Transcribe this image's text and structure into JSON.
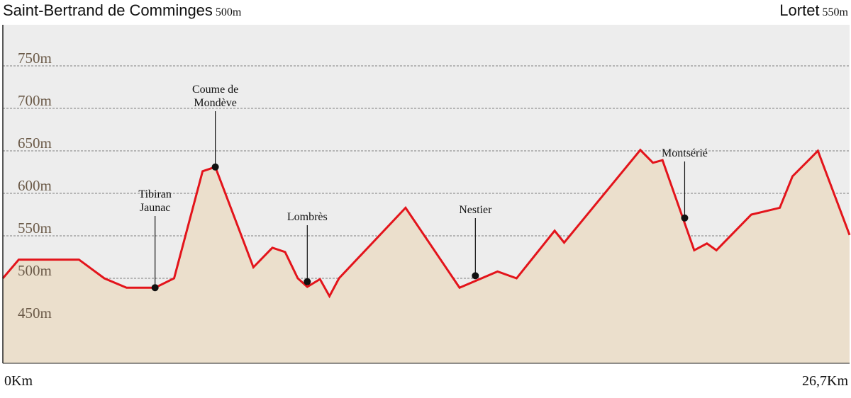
{
  "header": {
    "start_name": "Saint-Bertrand de Comminges",
    "start_alt": "500m",
    "end_name": "Lortet",
    "end_alt": "550m"
  },
  "colors": {
    "plot_bg": "#ededed",
    "area_fill": "#ebdfcc",
    "line": "#e3141b",
    "grid": "#a3a3a3",
    "marker": "#111111",
    "axis_text": "#6b5a48"
  },
  "chart_data": {
    "type": "area",
    "xlabel": "",
    "ylabel": "",
    "xlim": [
      0,
      26.7
    ],
    "ylim": [
      400,
      800
    ],
    "yticks": [
      450,
      500,
      550,
      600,
      650,
      700,
      750
    ],
    "ytick_labels": [
      "450m",
      "500m",
      "550m",
      "600m",
      "650m",
      "700m",
      "750m"
    ],
    "xtick_labels": [
      "0Km",
      "26,7Km"
    ],
    "grid": true,
    "series": [
      {
        "x": [
          0,
          0.5,
          1.2,
          2.4,
          3.2,
          3.9,
          4.8,
          5.4,
          6.3,
          6.7,
          7.9,
          8.5,
          8.9,
          9.3,
          9.6,
          10.0,
          10.3,
          10.6,
          12.7,
          14.4,
          15.6,
          16.2,
          17.4,
          17.7,
          20.1,
          20.5,
          20.8,
          21.8,
          22.2,
          22.5,
          23.6,
          24.5,
          24.9,
          25.7,
          26.7
        ],
        "y": [
          500,
          522,
          522,
          522,
          500,
          489,
          489,
          500,
          626,
          631,
          513,
          536,
          531,
          500,
          490,
          499,
          479,
          500,
          583,
          489,
          508,
          500,
          556,
          542,
          651,
          636,
          639,
          533,
          541,
          533,
          575,
          583,
          620,
          650,
          551
        ]
      }
    ],
    "points": [
      {
        "name": "Tibiran Jaunac",
        "lines": [
          "Tibiran",
          "Jaunac"
        ],
        "x": 4.8,
        "y": 489
      },
      {
        "name": "Coume de Mondève",
        "lines": [
          "Coume de",
          "Mondève"
        ],
        "x": 6.7,
        "y": 631
      },
      {
        "name": "Lombrès",
        "lines": [
          "Lombrès"
        ],
        "x": 9.6,
        "y": 496
      },
      {
        "name": "Nestier",
        "lines": [
          "Nestier"
        ],
        "x": 14.9,
        "y": 503
      },
      {
        "name": "Montsérié",
        "lines": [
          "Montsérié"
        ],
        "x": 21.5,
        "y": 571
      }
    ]
  }
}
